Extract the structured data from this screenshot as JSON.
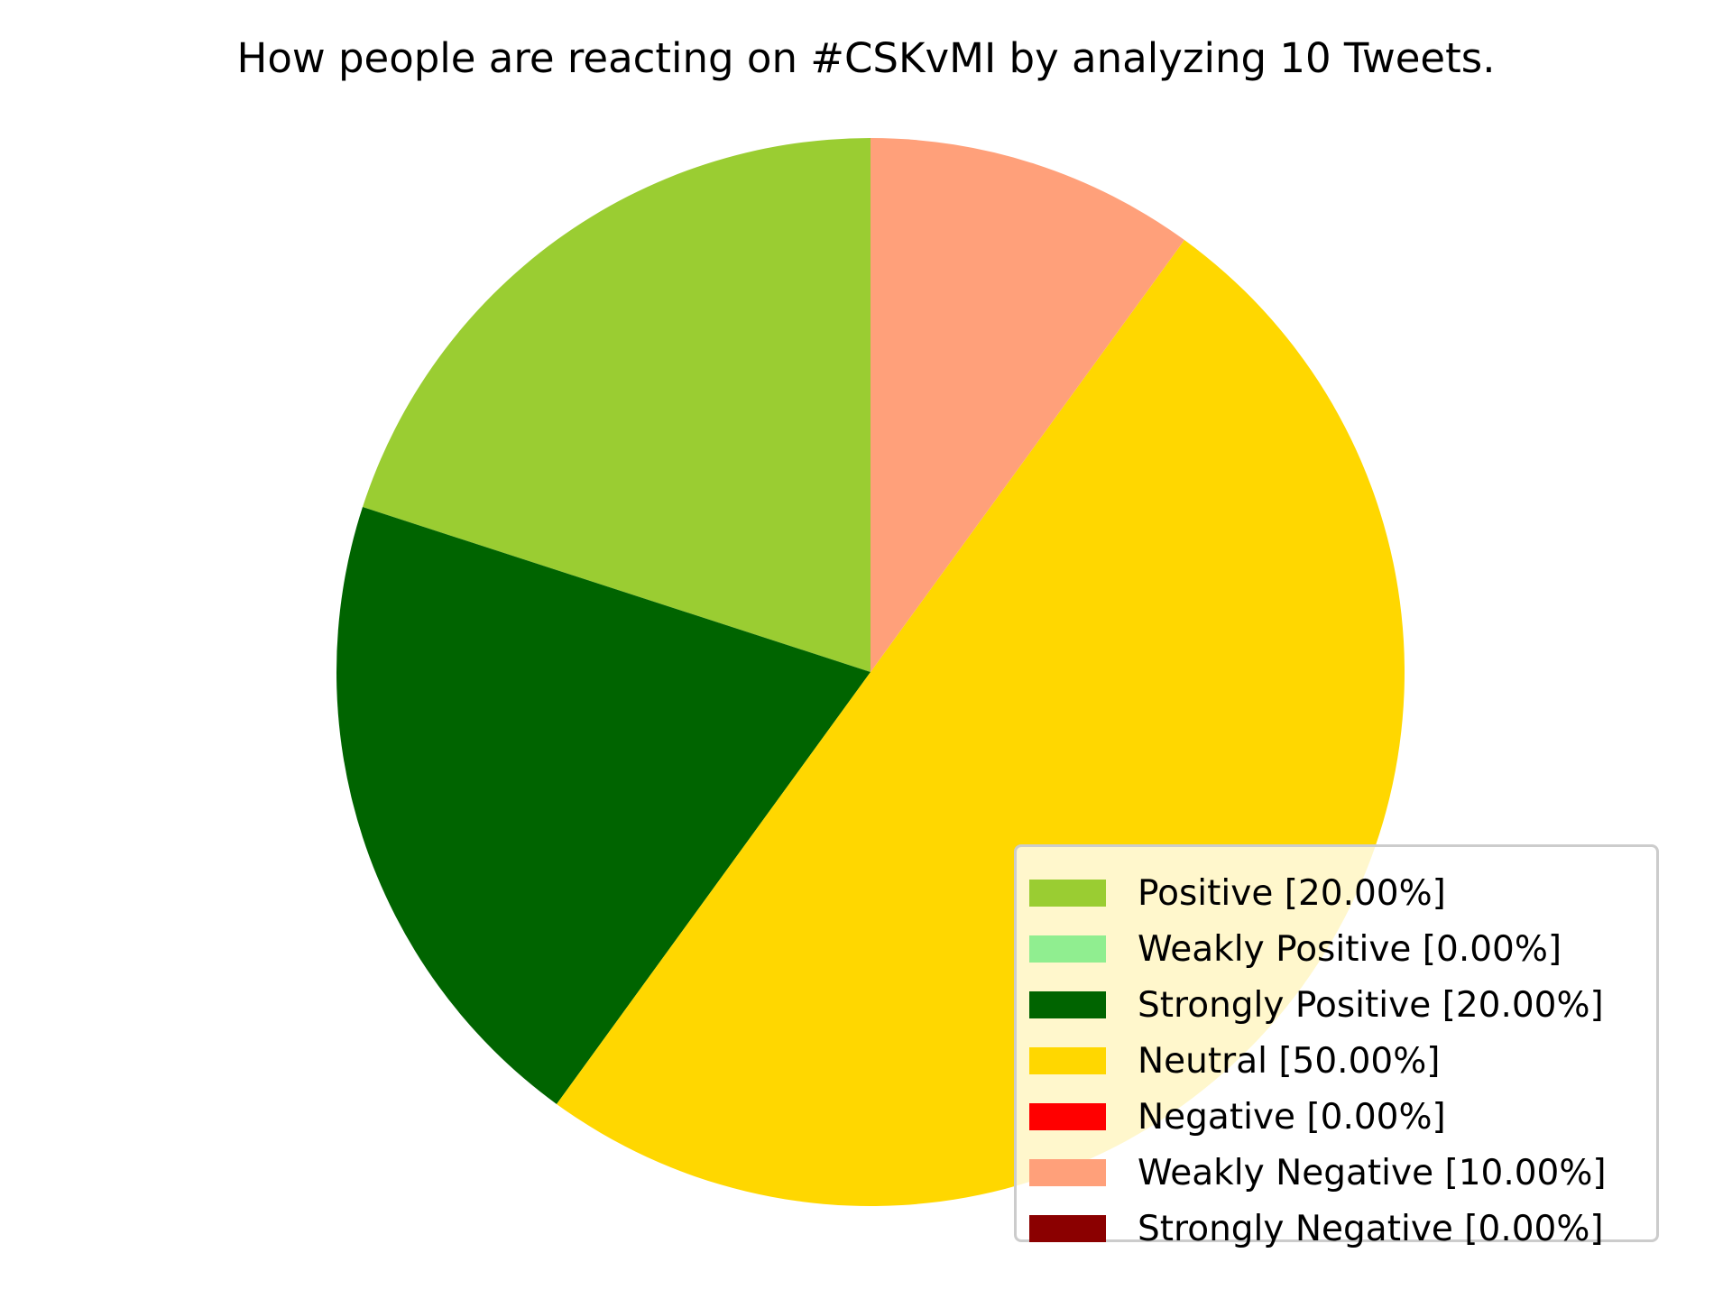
{
  "chart_data": {
    "type": "pie",
    "title": "How people are reacting on #CSKvMI by analyzing 10 Tweets.",
    "slices": [
      {
        "label": "Positive [20.00%]",
        "value": 20.0,
        "color": "#9acd32"
      },
      {
        "label": "Weakly Positive [0.00%]",
        "value": 0.0,
        "color": "#90ee90"
      },
      {
        "label": "Strongly Positive [20.00%]",
        "value": 20.0,
        "color": "#006400"
      },
      {
        "label": "Neutral [50.00%]",
        "value": 50.0,
        "color": "#ffd700"
      },
      {
        "label": "Negative [0.00%]",
        "value": 0.0,
        "color": "#ff0000"
      },
      {
        "label": "Weakly Negative [10.00%]",
        "value": 10.0,
        "color": "#ffa07a"
      },
      {
        "label": "Strongly Negative [0.00%]",
        "value": 0.0,
        "color": "#8b0000"
      }
    ],
    "start_angle_deg": 90,
    "direction": "counterclockwise",
    "legend_position": "lower-right"
  }
}
